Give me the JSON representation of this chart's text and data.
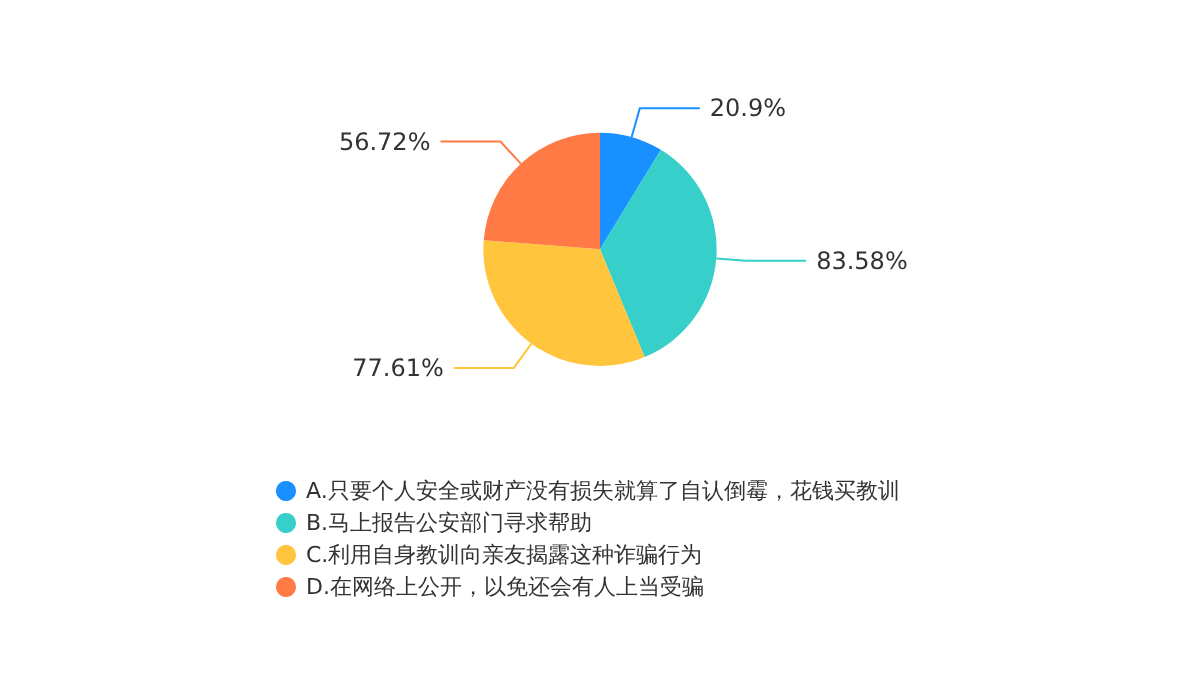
{
  "chart_data": {
    "type": "pie",
    "categories": [
      "A.只要个人安全或财产没有损失就算了自认倒霉，花钱买教训",
      "B.马上报告公安部门寻求帮助",
      "C.利用自身教训向亲友揭露这种诈骗行为",
      "D.在网络上公开，以免还会有人上当受骗"
    ],
    "values": [
      20.9,
      83.58,
      77.61,
      56.72
    ],
    "value_labels": [
      "20.9%",
      "83.58%",
      "77.61%",
      "56.72%"
    ],
    "colors": [
      "#1890ff",
      "#36cfc9",
      "#ffc53d",
      "#ff7a45"
    ],
    "legend": "bottom"
  }
}
